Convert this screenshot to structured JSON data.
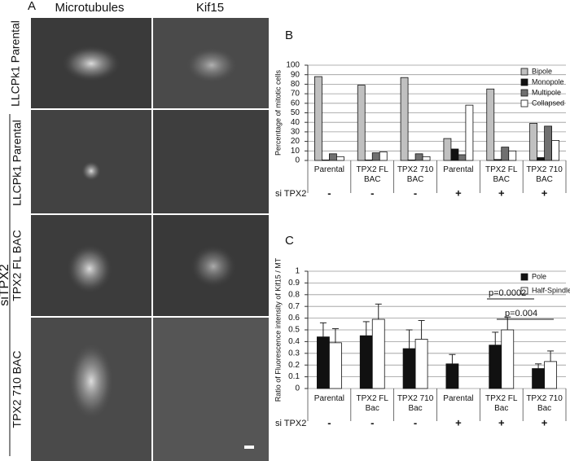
{
  "panels": {
    "letter": "A",
    "columns": [
      "Microtubules",
      "Kif15"
    ],
    "rows": [
      "LLCPk1 Parental",
      "LLCPk1 Parental",
      "TPX2 FL BAC",
      "TPX2 710 BAC"
    ],
    "group_label": "siTPX2"
  },
  "chart_data": [
    {
      "type": "bar",
      "panel": "B",
      "y_label": "Percentage of mitotic cells",
      "categories": [
        "Parental",
        "TPX2 FL BAC",
        "TPX2 710 BAC",
        "Parental",
        "TPX2 FL BAC",
        "TPX2 710 BAC"
      ],
      "condition_label": "si TPX2",
      "conditions": [
        "-",
        "-",
        "-",
        "+",
        "+",
        "+"
      ],
      "series": [
        {
          "name": "Bipole",
          "color": "#c0c0c0",
          "values": [
            88,
            79,
            87,
            23,
            75,
            39
          ]
        },
        {
          "name": "Monopole",
          "color": "#111111",
          "values": [
            0.5,
            0.5,
            0.5,
            12,
            1,
            3
          ]
        },
        {
          "name": "Multipole",
          "color": "#707070",
          "values": [
            7,
            8,
            7,
            6,
            14,
            36
          ]
        },
        {
          "name": "Collapsed",
          "color": "#ffffff",
          "values": [
            4,
            9,
            4,
            58,
            10,
            21
          ]
        }
      ],
      "ylim": [
        0,
        100
      ],
      "yticks": [
        0,
        10,
        20,
        30,
        40,
        50,
        60,
        70,
        80,
        90,
        100
      ],
      "grid": true,
      "legend": "top-right"
    },
    {
      "type": "bar",
      "panel": "C",
      "y_label": "Ratio of Fluorescence intensity of Kif15 / MT",
      "categories": [
        "Parental",
        "TPX2 FL Bac",
        "TPX2 710 Bac",
        "Parental",
        "TPX2 FL Bac",
        "TPX2 710 Bac"
      ],
      "condition_label": "si TPX2",
      "conditions": [
        "-",
        "-",
        "-",
        "+",
        "+",
        "+"
      ],
      "series": [
        {
          "name": "Pole",
          "color": "#111111",
          "values": [
            0.44,
            0.45,
            0.34,
            0.21,
            0.37,
            0.17
          ],
          "errors": [
            0.12,
            0.12,
            0.16,
            0.08,
            0.11,
            0.04
          ]
        },
        {
          "name": "Half-Spindle",
          "color": "#ffffff",
          "values": [
            0.39,
            0.59,
            0.42,
            null,
            0.5,
            0.23
          ],
          "errors": [
            0.12,
            0.13,
            0.16,
            null,
            0.11,
            0.09
          ]
        }
      ],
      "ylim": [
        0,
        1
      ],
      "yticks": [
        0,
        0.1,
        0.2,
        0.3,
        0.4,
        0.5,
        0.6,
        0.7,
        0.8,
        0.9,
        1
      ],
      "grid": true,
      "legend": "top-right",
      "annotations": [
        "p=0.0002",
        "p=0.004"
      ]
    }
  ]
}
